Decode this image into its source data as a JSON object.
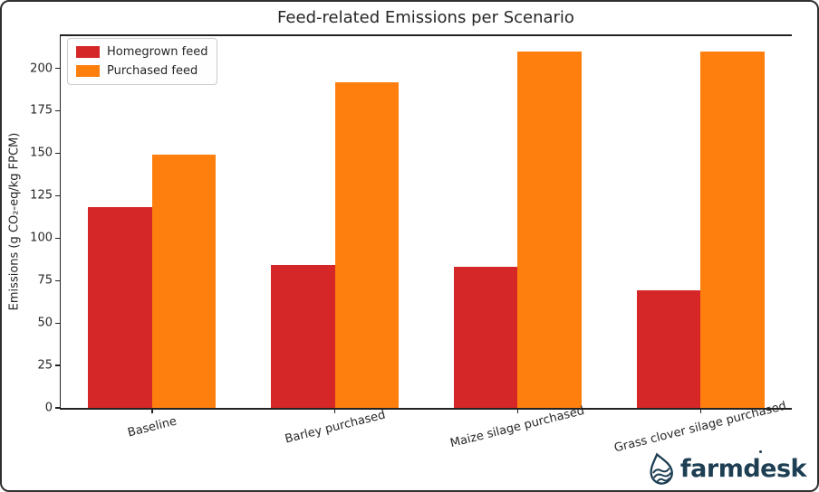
{
  "chart_data": {
    "type": "bar",
    "title": "Feed-related Emissions per Scenario",
    "xlabel": "",
    "ylabel": "Emissions (g CO₂-eq/kg FPCM)",
    "categories": [
      "Baseline",
      "Barley purchased",
      "Maize silage purchased",
      "Grass clover silage purchased"
    ],
    "series": [
      {
        "name": "Homegrown feed",
        "color": "#d62728",
        "values": [
          118,
          84,
          83,
          69
        ]
      },
      {
        "name": "Purchased feed",
        "color": "#ff7f0e",
        "values": [
          149,
          192,
          210,
          210
        ]
      }
    ],
    "ylim": [
      0,
      220
    ],
    "yticks": [
      0,
      25,
      50,
      75,
      100,
      125,
      150,
      175,
      200
    ],
    "grid": false,
    "legend_position": "upper left",
    "bar_width_fraction": 0.35
  },
  "branding": {
    "logo_text": "farmdesk",
    "logo_color": "#1d3e53"
  }
}
